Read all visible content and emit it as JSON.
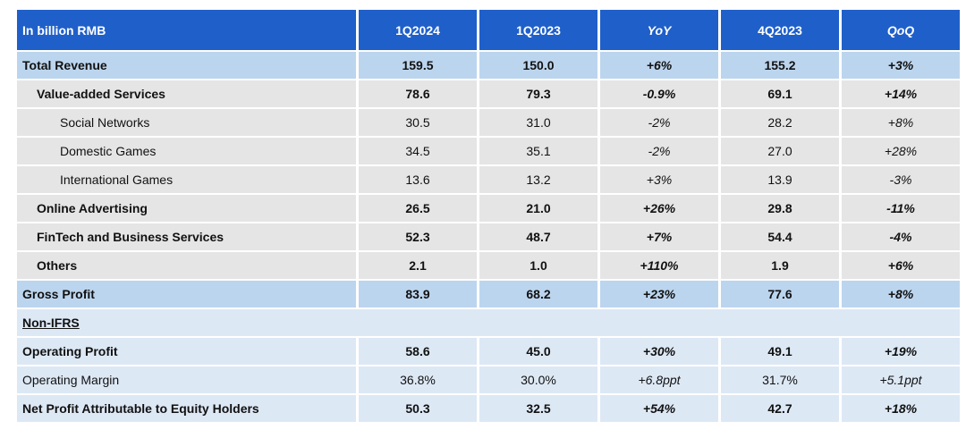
{
  "table": {
    "headers": [
      "In billion RMB",
      "1Q2024",
      "1Q2023",
      "YoY",
      "4Q2023",
      "QoQ"
    ],
    "rows": {
      "total_revenue": [
        "Total Revenue",
        "159.5",
        "150.0",
        "+6%",
        "155.2",
        "+3%"
      ],
      "vas": [
        "Value-added Services",
        "78.6",
        "79.3",
        "-0.9%",
        "69.1",
        "+14%"
      ],
      "social": [
        "Social Networks",
        "30.5",
        "31.0",
        "-2%",
        "28.2",
        "+8%"
      ],
      "domestic": [
        "Domestic Games",
        "34.5",
        "35.1",
        "-2%",
        "27.0",
        "+28%"
      ],
      "international": [
        "International Games",
        "13.6",
        "13.2",
        "+3%",
        "13.9",
        "-3%"
      ],
      "online_ads": [
        "Online Advertising",
        "26.5",
        "21.0",
        "+26%",
        "29.8",
        "-11%"
      ],
      "fintech": [
        "FinTech and Business Services",
        "52.3",
        "48.7",
        "+7%",
        "54.4",
        "-4%"
      ],
      "others": [
        "Others",
        "2.1",
        "1.0",
        "+110%",
        "1.9",
        "+6%"
      ],
      "gross_profit": [
        "Gross Profit",
        "83.9",
        "68.2",
        "+23%",
        "77.6",
        "+8%"
      ],
      "non_ifrs": [
        "Non-IFRS"
      ],
      "operating_profit": [
        "Operating Profit",
        "58.6",
        "45.0",
        "+30%",
        "49.1",
        "+19%"
      ],
      "operating_margin": [
        "Operating Margin",
        "36.8%",
        "30.0%",
        "+6.8ppt",
        "31.7%",
        "+5.1ppt"
      ],
      "net_profit": [
        "Net Profit Attributable to Equity Holders",
        "50.3",
        "32.5",
        "+54%",
        "42.7",
        "+18%"
      ]
    }
  },
  "colors": {
    "header": "#1f5fc9",
    "highlight_row": "#bcd5ee",
    "grey_row": "#e5e5e5",
    "light_row": "#dde8f5"
  }
}
